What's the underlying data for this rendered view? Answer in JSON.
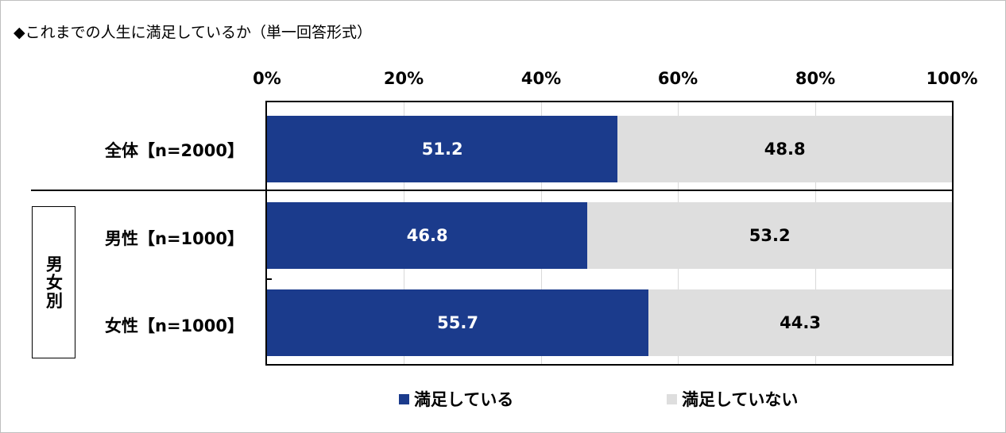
{
  "title": "◆これまでの人生に満足しているか（単一回答形式）",
  "group_label": "男女別",
  "colors": {
    "satisfied": "#1b3b8c",
    "not_satisfied": "#dedede"
  },
  "chart_data": {
    "type": "bar",
    "orientation": "horizontal",
    "stacked": true,
    "categories": [
      "全体【n=2000】",
      "男性【n=1000】",
      "女性【n=1000】"
    ],
    "series": [
      {
        "name": "満足している",
        "values": [
          51.2,
          46.8,
          55.7
        ]
      },
      {
        "name": "満足していない",
        "values": [
          48.8,
          53.2,
          44.3
        ]
      }
    ],
    "value_labels": [
      [
        "51.2",
        "48.8"
      ],
      [
        "46.8",
        "53.2"
      ],
      [
        "55.7",
        "44.3"
      ]
    ],
    "xlim": [
      0,
      100
    ],
    "tick_labels": [
      "0%",
      "20%",
      "40%",
      "60%",
      "80%",
      "100%"
    ],
    "legend_position": "bottom",
    "grid": true
  }
}
